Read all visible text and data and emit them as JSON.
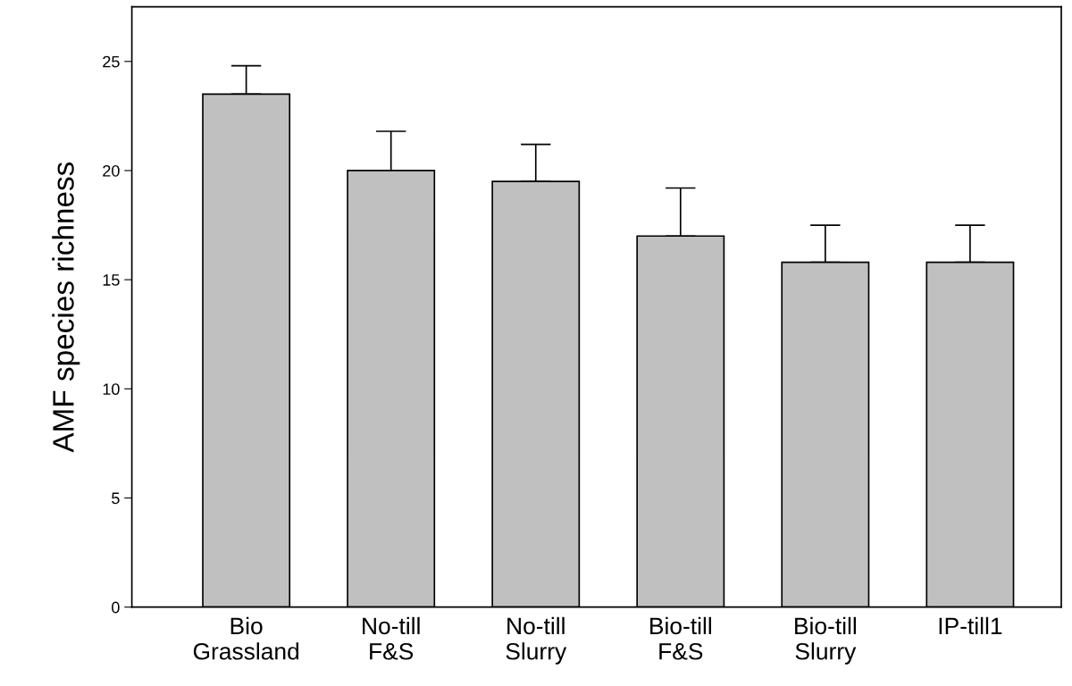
{
  "chart_data": {
    "type": "bar",
    "ylabel": "AMF species richness",
    "categories": [
      "Bio\nGrassland",
      "No-till\nF&S",
      "No-till\nSlurry",
      "Bio-till\nF&S",
      "Bio-till\nSlurry",
      "IP-till1"
    ],
    "values": [
      23.5,
      20.0,
      19.5,
      17.0,
      15.8,
      15.8
    ],
    "errors": [
      [
        23.5,
        24.8
      ],
      [
        20.0,
        21.8
      ],
      [
        19.5,
        21.2
      ],
      [
        17.0,
        19.2
      ],
      [
        15.8,
        17.5
      ],
      [
        15.8,
        17.5
      ]
    ],
    "color": "#c0c0c0",
    "ylim": [
      0,
      27.5
    ],
    "yticks": [
      0,
      5,
      10,
      15,
      20,
      25
    ],
    "grid": false
  }
}
